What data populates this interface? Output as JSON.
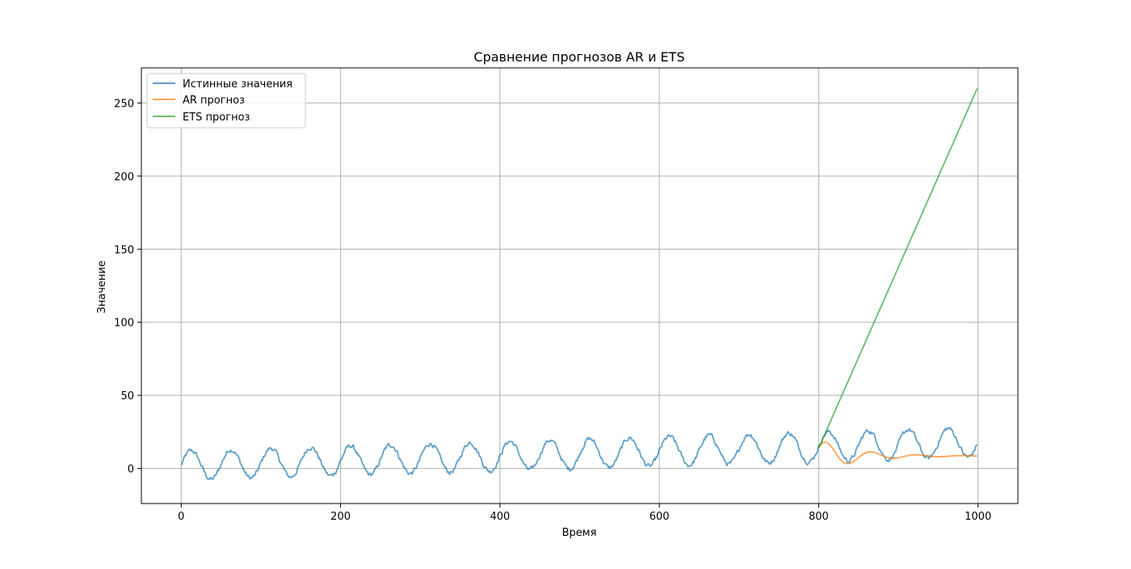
{
  "chart_data": {
    "type": "line",
    "title": "Сравнение прогнозов AR и ETS",
    "xlabel": "Время",
    "ylabel": "Значение",
    "xlim": [
      -50,
      1050
    ],
    "ylim": [
      -24,
      274
    ],
    "xticks": [
      0,
      200,
      400,
      600,
      800,
      1000
    ],
    "yticks": [
      0,
      50,
      100,
      150,
      200,
      250
    ],
    "grid": true,
    "legend_position": "top-left",
    "series": [
      {
        "name": "Истинные значения",
        "color": "#1f77b4",
        "opacity": 0.7,
        "generator": {
          "x_start": 0,
          "x_end": 999,
          "offset": 2,
          "trend_per_step": 0.016,
          "amplitude": 10,
          "period": 50,
          "noise": 1.3
        }
      },
      {
        "name": "AR прогноз",
        "color": "#ff7f0e",
        "opacity": 0.7,
        "generator": {
          "x_start": 800,
          "x_end": 999,
          "start_value": 14,
          "level": 8.5,
          "decay": 0.021,
          "amplitude": 10,
          "period": 57
        }
      },
      {
        "name": "ETS прогноз",
        "color": "#2ca02c",
        "opacity": 0.7,
        "x": [
          800,
          999
        ],
        "y": [
          14,
          260
        ]
      }
    ]
  }
}
